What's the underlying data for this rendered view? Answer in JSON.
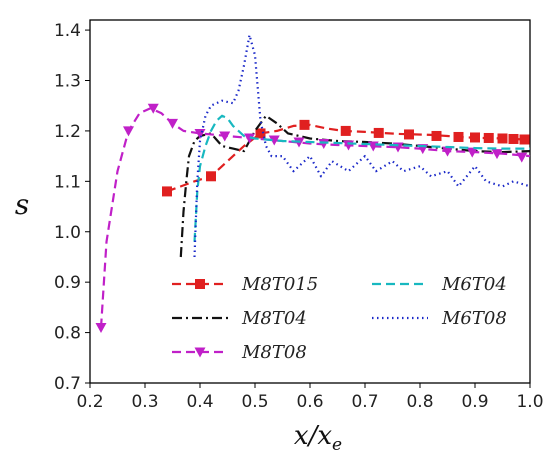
{
  "chart_data": {
    "type": "line",
    "title": "",
    "xlabel": "x/x_e",
    "ylabel": "s",
    "xlim": [
      0.2,
      1.0
    ],
    "ylim": [
      0.7,
      1.42
    ],
    "xticks": [
      0.2,
      0.3,
      0.4,
      0.5,
      0.6,
      0.7,
      0.8,
      0.9,
      1.0
    ],
    "yticks": [
      0.7,
      0.8,
      0.9,
      1.0,
      1.1,
      1.2,
      1.3,
      1.4
    ],
    "xtick_labels": [
      "0.2",
      "0.3",
      "0.4",
      "0.5",
      "0.6",
      "0.7",
      "0.8",
      "0.9",
      "1.0"
    ],
    "ytick_labels": [
      "0.7",
      "0.8",
      "0.9",
      "1.0",
      "1.1",
      "1.2",
      "1.3",
      "1.4"
    ],
    "grid": false,
    "legend_position": "lower-center",
    "series": [
      {
        "name": "M8T015",
        "color": "#e02020",
        "dash": "dashed",
        "marker": "square",
        "x": [
          0.34,
          0.365,
          0.39,
          0.42,
          0.45,
          0.48,
          0.51,
          0.54,
          0.57,
          0.6,
          0.63,
          0.66,
          0.7,
          0.73,
          0.76,
          0.79,
          0.82,
          0.85,
          0.87,
          0.89,
          0.91,
          0.93,
          0.95,
          0.97,
          0.99
        ],
        "y": [
          1.08,
          1.09,
          1.1,
          1.11,
          1.14,
          1.17,
          1.195,
          1.2,
          1.21,
          1.212,
          1.205,
          1.2,
          1.198,
          1.196,
          1.194,
          1.193,
          1.192,
          1.19,
          1.188,
          1.187,
          1.186,
          1.186,
          1.185,
          1.184,
          1.183
        ],
        "marker_x": [
          0.34,
          0.42,
          0.51,
          0.59,
          0.665,
          0.725,
          0.78,
          0.83,
          0.87,
          0.9,
          0.925,
          0.95,
          0.97,
          0.99
        ],
        "marker_y": [
          1.08,
          1.11,
          1.195,
          1.212,
          1.2,
          1.196,
          1.193,
          1.19,
          1.188,
          1.187,
          1.186,
          1.185,
          1.184,
          1.183
        ]
      },
      {
        "name": "M8T04",
        "color": "#111111",
        "dash": "dashdot",
        "marker": "none",
        "x": [
          0.365,
          0.37,
          0.375,
          0.38,
          0.39,
          0.4,
          0.42,
          0.44,
          0.46,
          0.48,
          0.5,
          0.52,
          0.54,
          0.56,
          0.6,
          0.65,
          0.7,
          0.75,
          0.8,
          0.85,
          0.9,
          0.95,
          1.0
        ],
        "y": [
          0.95,
          1.04,
          1.1,
          1.15,
          1.18,
          1.19,
          1.195,
          1.17,
          1.165,
          1.16,
          1.2,
          1.23,
          1.215,
          1.195,
          1.185,
          1.18,
          1.178,
          1.175,
          1.17,
          1.165,
          1.16,
          1.158,
          1.16
        ]
      },
      {
        "name": "M8T08",
        "color": "#c020c8",
        "dash": "dashed",
        "marker": "triangle-down",
        "x": [
          0.22,
          0.23,
          0.25,
          0.27,
          0.29,
          0.31,
          0.33,
          0.35,
          0.37,
          0.4,
          0.45,
          0.5,
          0.55,
          0.6,
          0.65,
          0.7,
          0.75,
          0.8,
          0.85,
          0.9,
          0.95,
          1.0
        ],
        "y": [
          0.81,
          0.98,
          1.12,
          1.2,
          1.235,
          1.245,
          1.235,
          1.215,
          1.2,
          1.195,
          1.19,
          1.185,
          1.18,
          1.175,
          1.172,
          1.17,
          1.168,
          1.165,
          1.16,
          1.158,
          1.155,
          1.15
        ],
        "marker_x": [
          0.22,
          0.27,
          0.315,
          0.35,
          0.4,
          0.445,
          0.49,
          0.535,
          0.58,
          0.625,
          0.67,
          0.715,
          0.76,
          0.805,
          0.85,
          0.895,
          0.94,
          0.985
        ],
        "marker_y": [
          0.81,
          1.2,
          1.245,
          1.215,
          1.195,
          1.19,
          1.186,
          1.182,
          1.178,
          1.175,
          1.172,
          1.17,
          1.168,
          1.165,
          1.16,
          1.158,
          1.155,
          1.148
        ]
      },
      {
        "name": "M6T04",
        "color": "#18b8c0",
        "dash": "dashed",
        "marker": "none",
        "x": [
          0.39,
          0.395,
          0.4,
          0.41,
          0.42,
          0.43,
          0.44,
          0.45,
          0.46,
          0.47,
          0.48,
          0.5,
          0.55,
          0.6,
          0.65,
          0.7,
          0.75,
          0.8,
          0.85,
          0.9,
          0.95,
          1.0
        ],
        "y": [
          0.98,
          1.08,
          1.13,
          1.17,
          1.2,
          1.22,
          1.23,
          1.225,
          1.21,
          1.2,
          1.19,
          1.185,
          1.18,
          1.178,
          1.176,
          1.174,
          1.172,
          1.17,
          1.168,
          1.166,
          1.165,
          1.165
        ]
      },
      {
        "name": "M6T08",
        "color": "#1a28c8",
        "dash": "dotted",
        "marker": "none",
        "x": [
          0.39,
          0.395,
          0.4,
          0.41,
          0.42,
          0.44,
          0.46,
          0.47,
          0.48,
          0.49,
          0.5,
          0.51,
          0.52,
          0.53,
          0.55,
          0.57,
          0.6,
          0.62,
          0.64,
          0.67,
          0.7,
          0.72,
          0.75,
          0.77,
          0.8,
          0.82,
          0.85,
          0.87,
          0.9,
          0.92,
          0.95,
          0.97,
          1.0
        ],
        "y": [
          0.95,
          1.1,
          1.18,
          1.23,
          1.25,
          1.26,
          1.255,
          1.28,
          1.33,
          1.39,
          1.35,
          1.22,
          1.17,
          1.15,
          1.15,
          1.12,
          1.15,
          1.11,
          1.14,
          1.12,
          1.15,
          1.12,
          1.14,
          1.12,
          1.13,
          1.11,
          1.12,
          1.09,
          1.13,
          1.1,
          1.09,
          1.1,
          1.09
        ]
      }
    ]
  }
}
